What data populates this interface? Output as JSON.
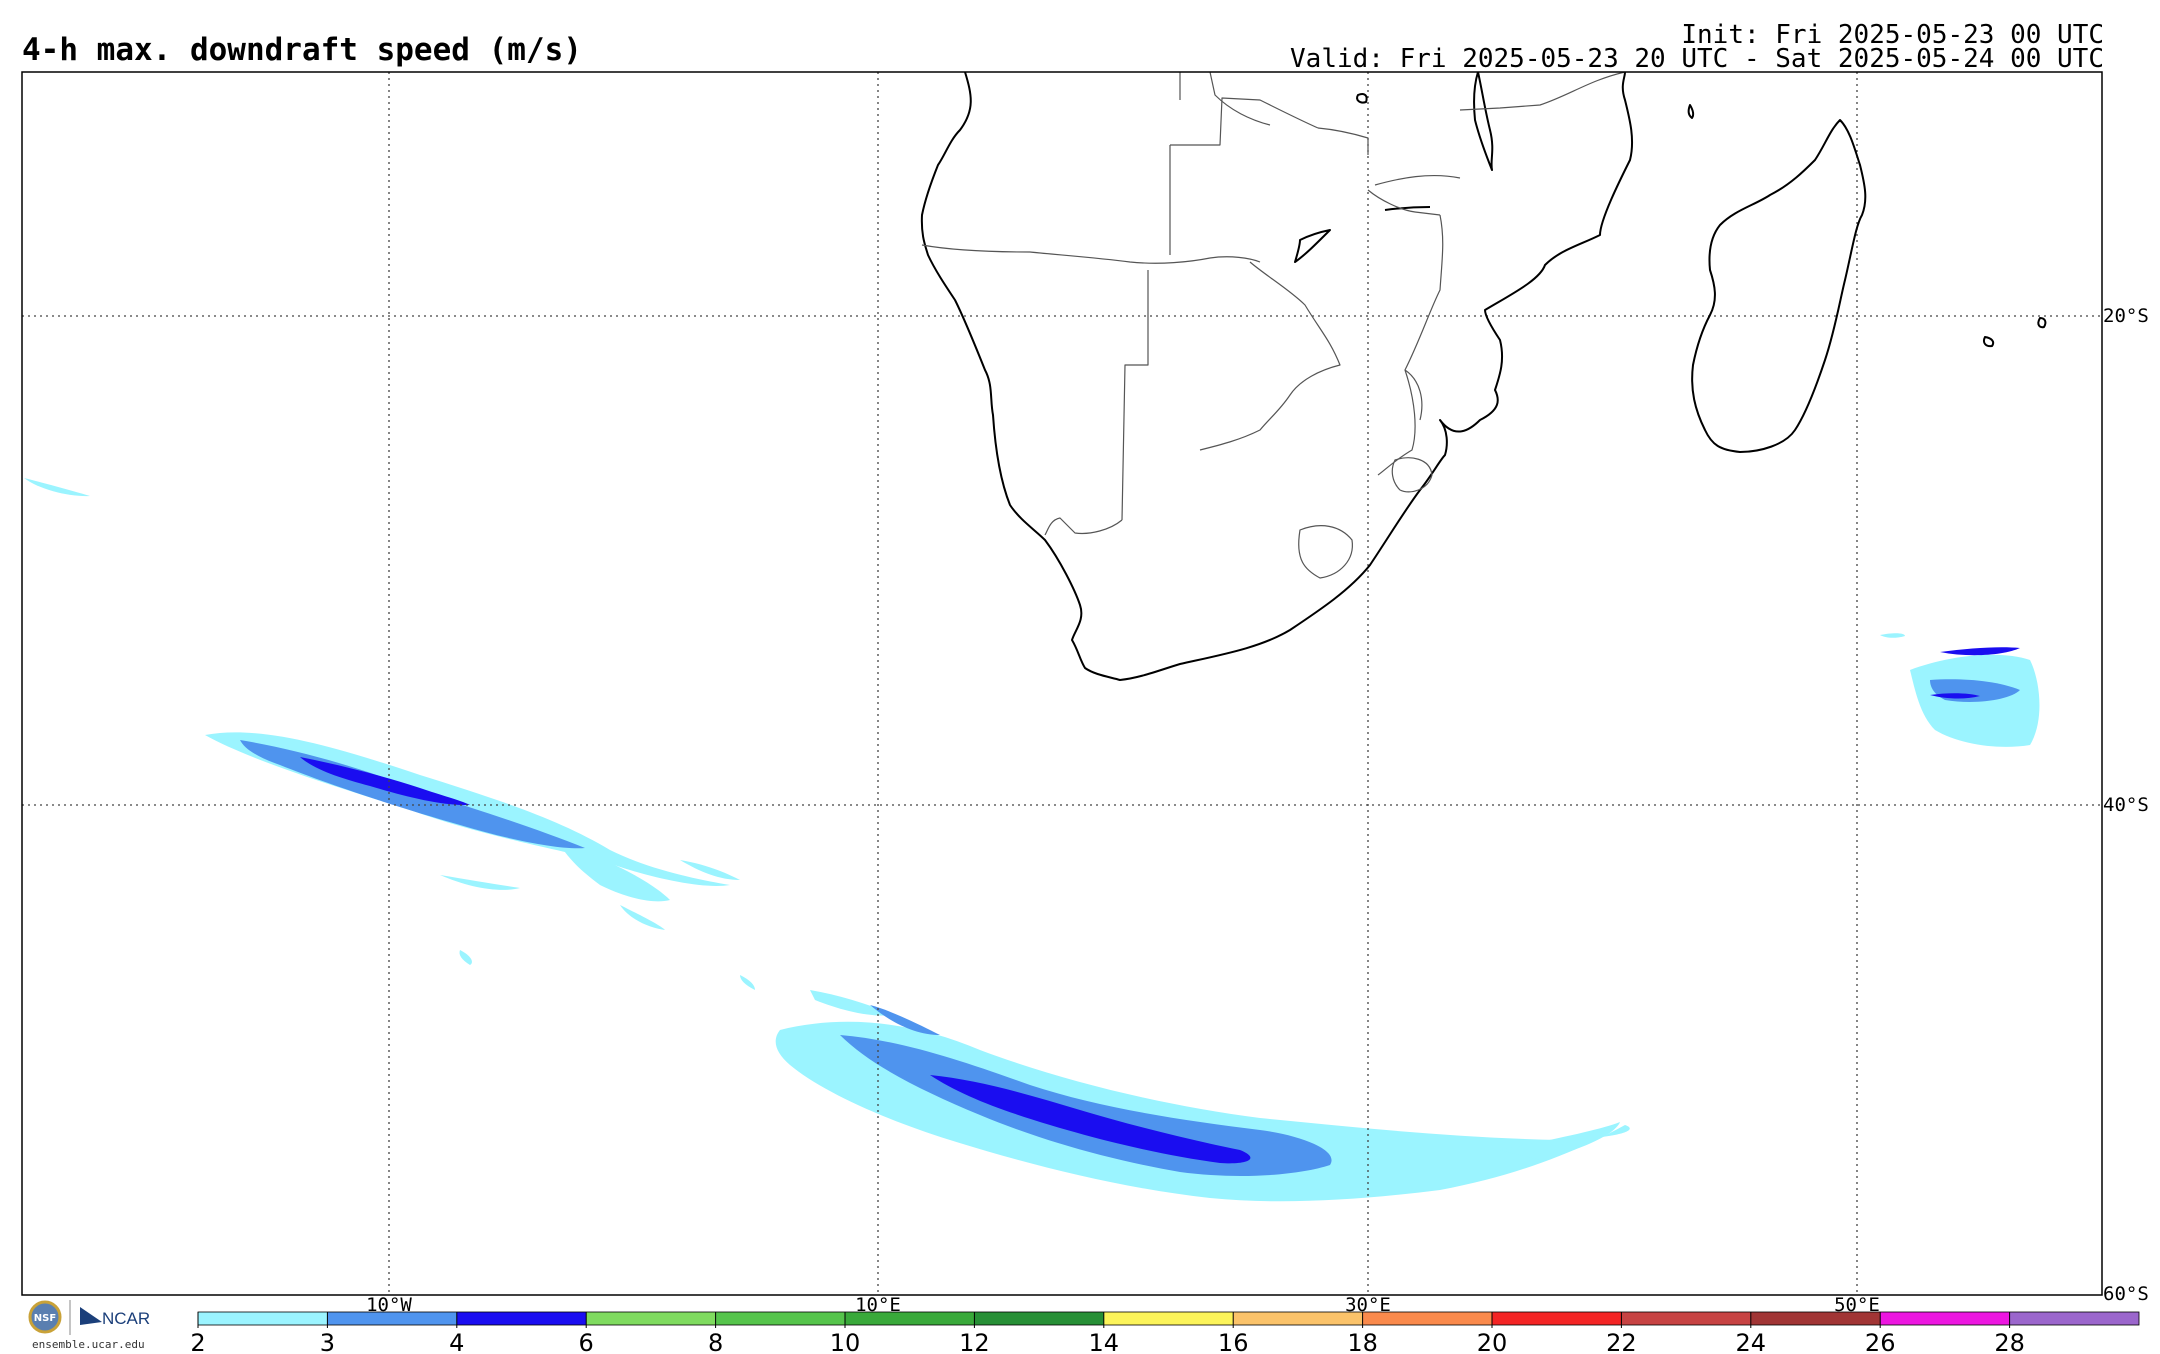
{
  "header": {
    "title": "4-h max. downdraft speed (m/s)",
    "init": "Init: Fri 2025-05-23 00 UTC",
    "valid": "Valid: Fri 2025-05-23 20 UTC - Sat 2025-05-24 00 UTC"
  },
  "map": {
    "lon_labels": [
      "10°W",
      "10°E",
      "30°E",
      "50°E"
    ],
    "lat_labels": [
      "20°S",
      "40°S",
      "60°S"
    ],
    "gridlines": "dotted"
  },
  "colorbar": {
    "ticks": [
      "2",
      "3",
      "4",
      "6",
      "8",
      "10",
      "12",
      "14",
      "16",
      "18",
      "20",
      "22",
      "24",
      "26",
      "28"
    ],
    "colors": [
      "#9bf4ff",
      "#4f94ee",
      "#1a0df0",
      "#7fdb5f",
      "#55c44b",
      "#39a93a",
      "#278f36",
      "#fcf45a",
      "#fbc36a",
      "#fa8a4c",
      "#f32424",
      "#c74343",
      "#a13535",
      "#ec16e0",
      "#9b66cc"
    ]
  },
  "logos": {
    "org": "NCAR",
    "url": "ensemble.ucar.edu",
    "seal": "NSF"
  }
}
